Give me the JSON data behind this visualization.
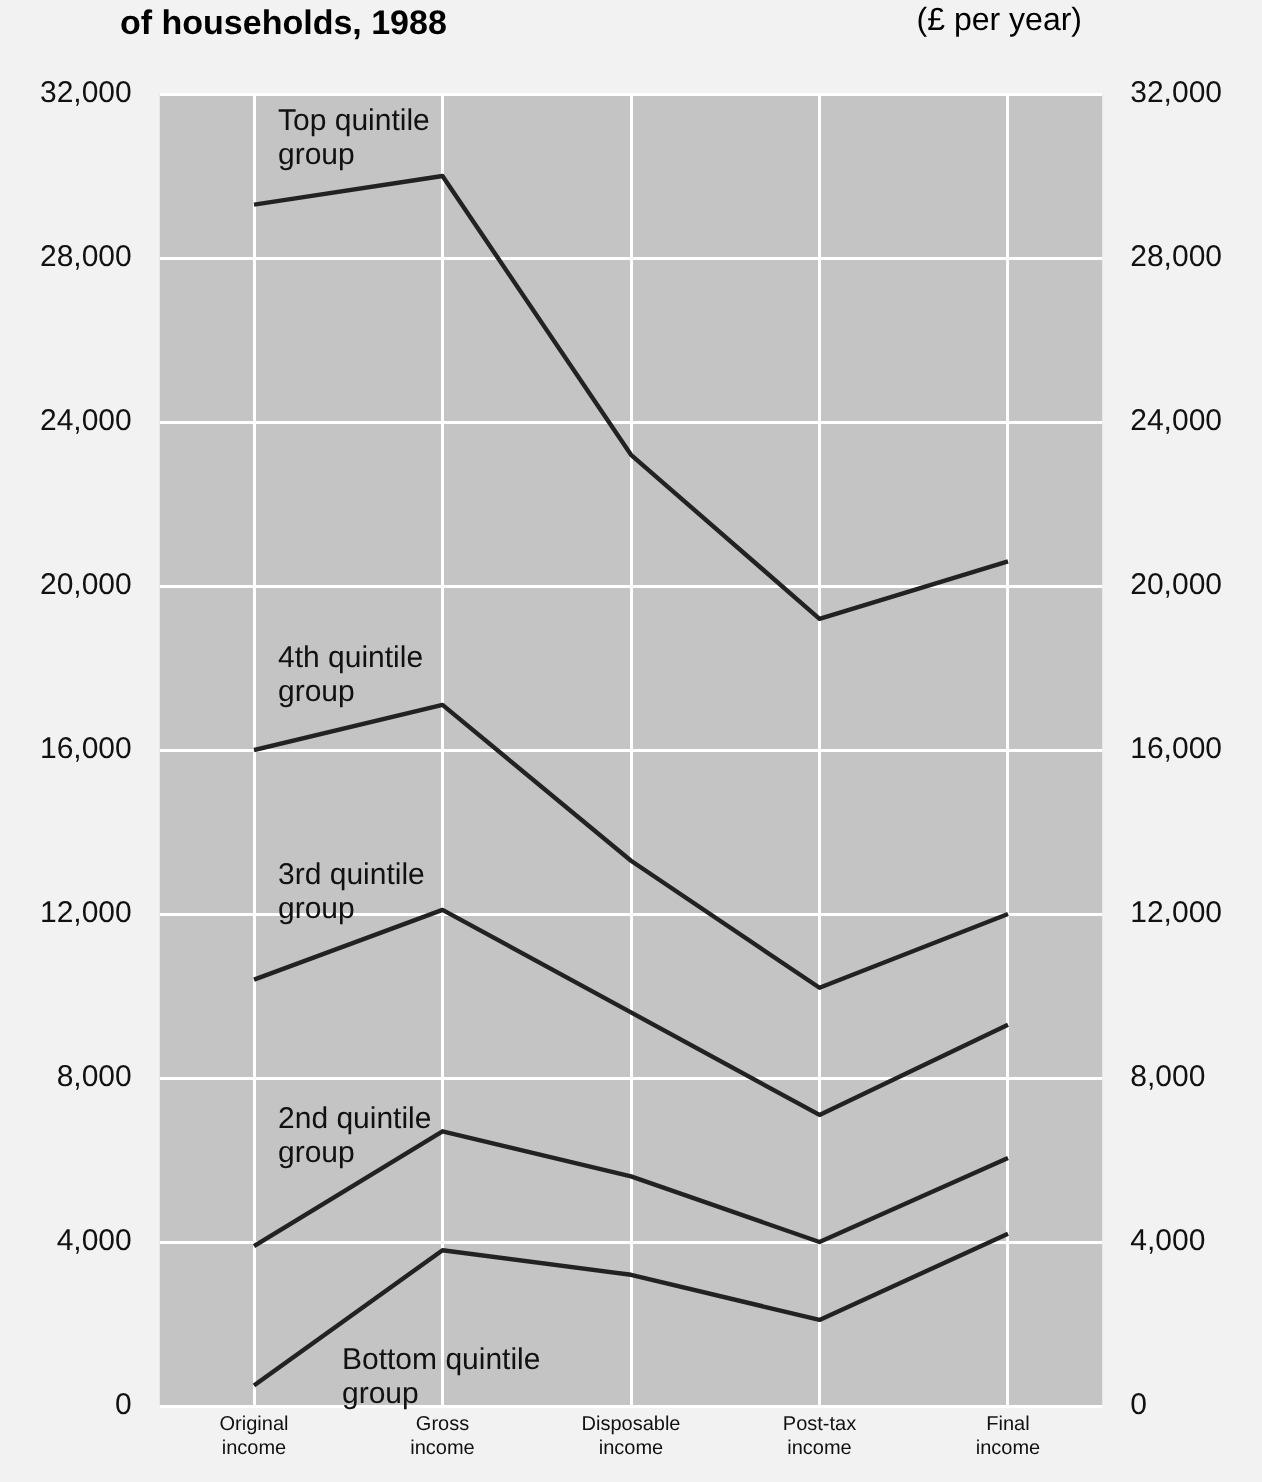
{
  "chart_data": {
    "type": "line",
    "title": "of households, 1988",
    "y2label": "(£ per year)",
    "categories": [
      "Original income",
      "Gross income",
      "Disposable income",
      "Post-tax income",
      "Final income"
    ],
    "series": [
      {
        "name": "Top quintile group",
        "color": "#222222",
        "values": [
          29300,
          30000,
          23200,
          19200,
          20600
        ]
      },
      {
        "name": "4th quintile group",
        "color": "#222222",
        "values": [
          16000,
          17100,
          13300,
          10200,
          12000
        ]
      },
      {
        "name": "3rd quintile group",
        "color": "#222222",
        "values": [
          10400,
          12100,
          9600,
          7100,
          9300
        ]
      },
      {
        "name": "2nd quintile group",
        "color": "#222222",
        "values": [
          3900,
          6700,
          5600,
          4000,
          6050
        ]
      },
      {
        "name": "Bottom quintile group",
        "color": "#222222",
        "values": [
          500,
          3800,
          3200,
          2100,
          4200
        ]
      }
    ],
    "ylim": [
      0,
      32000
    ],
    "yticks": [
      0,
      {
        "value": 4000,
        "label": "4,000"
      },
      {
        "value": 8000,
        "label": "8,000"
      },
      {
        "value": 12000,
        "label": "12,000"
      },
      {
        "value": 16000,
        "label": "16,000"
      },
      {
        "value": 20000,
        "label": "20,000"
      },
      {
        "value": 24000,
        "label": "24,000"
      },
      {
        "value": 28000,
        "label": "28,000"
      },
      {
        "value": 32000,
        "label": "32,000"
      }
    ],
    "y2lim": [
      0,
      32000
    ],
    "y2ticks": [
      0,
      {
        "value": 4000,
        "label": "4,000"
      },
      {
        "value": 8000,
        "label": "8,000"
      },
      {
        "value": 12000,
        "label": "12,000"
      },
      {
        "value": 16000,
        "label": "16,000"
      },
      {
        "value": 20000,
        "label": "20,000"
      },
      {
        "value": 24000,
        "label": "24,000"
      },
      {
        "value": 28000,
        "label": "28,000"
      },
      {
        "value": 32000,
        "label": "32,000"
      }
    ],
    "grid": true,
    "legend": false,
    "marker": "none",
    "line_style": "solid"
  }
}
